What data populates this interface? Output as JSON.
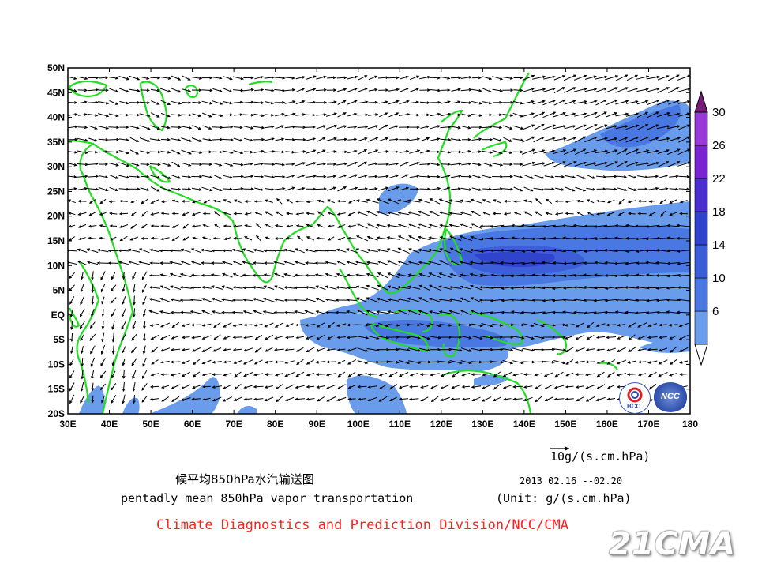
{
  "map": {
    "lat_labels": [
      "50N",
      "45N",
      "40N",
      "35N",
      "30N",
      "25N",
      "20N",
      "15N",
      "10N",
      "5N",
      "EQ",
      "5S",
      "10S",
      "15S",
      "20S"
    ],
    "lon_labels": [
      "30E",
      "40E",
      "50E",
      "60E",
      "70E",
      "80E",
      "90E",
      "100E",
      "110E",
      "120E",
      "130E",
      "140E",
      "150E",
      "160E",
      "170E",
      "180"
    ],
    "lon_range": [
      30,
      180
    ],
    "lat_range": [
      -20,
      50
    ],
    "coastline_color": "#22dd22",
    "arrow_color": "#000000"
  },
  "colorbar": {
    "labels": [
      "30",
      "26",
      "22",
      "18",
      "14",
      "10",
      "6"
    ],
    "colors": [
      "#ffffff",
      "#6a9cec",
      "#4a78e2",
      "#3c5ed8",
      "#2f43cc",
      "#4a2ed0",
      "#7a24d2",
      "#9a38d8",
      "#7a1a7a"
    ]
  },
  "reference_vector": {
    "label": "10g/(s.cm.hPa)"
  },
  "titles": {
    "cn": "候平均850hPa水汽输送图",
    "en": "pentadly mean 850hPa vapor transportation",
    "date": "2013  02.16 --02.20",
    "unit": "(Unit: g/(s.cm.hPa)",
    "credit": "Climate Diagnostics and Prediction Division/NCC/CMA"
  },
  "logos": {
    "left": "BCC",
    "right": "NCC"
  },
  "watermark": "21CMA"
}
